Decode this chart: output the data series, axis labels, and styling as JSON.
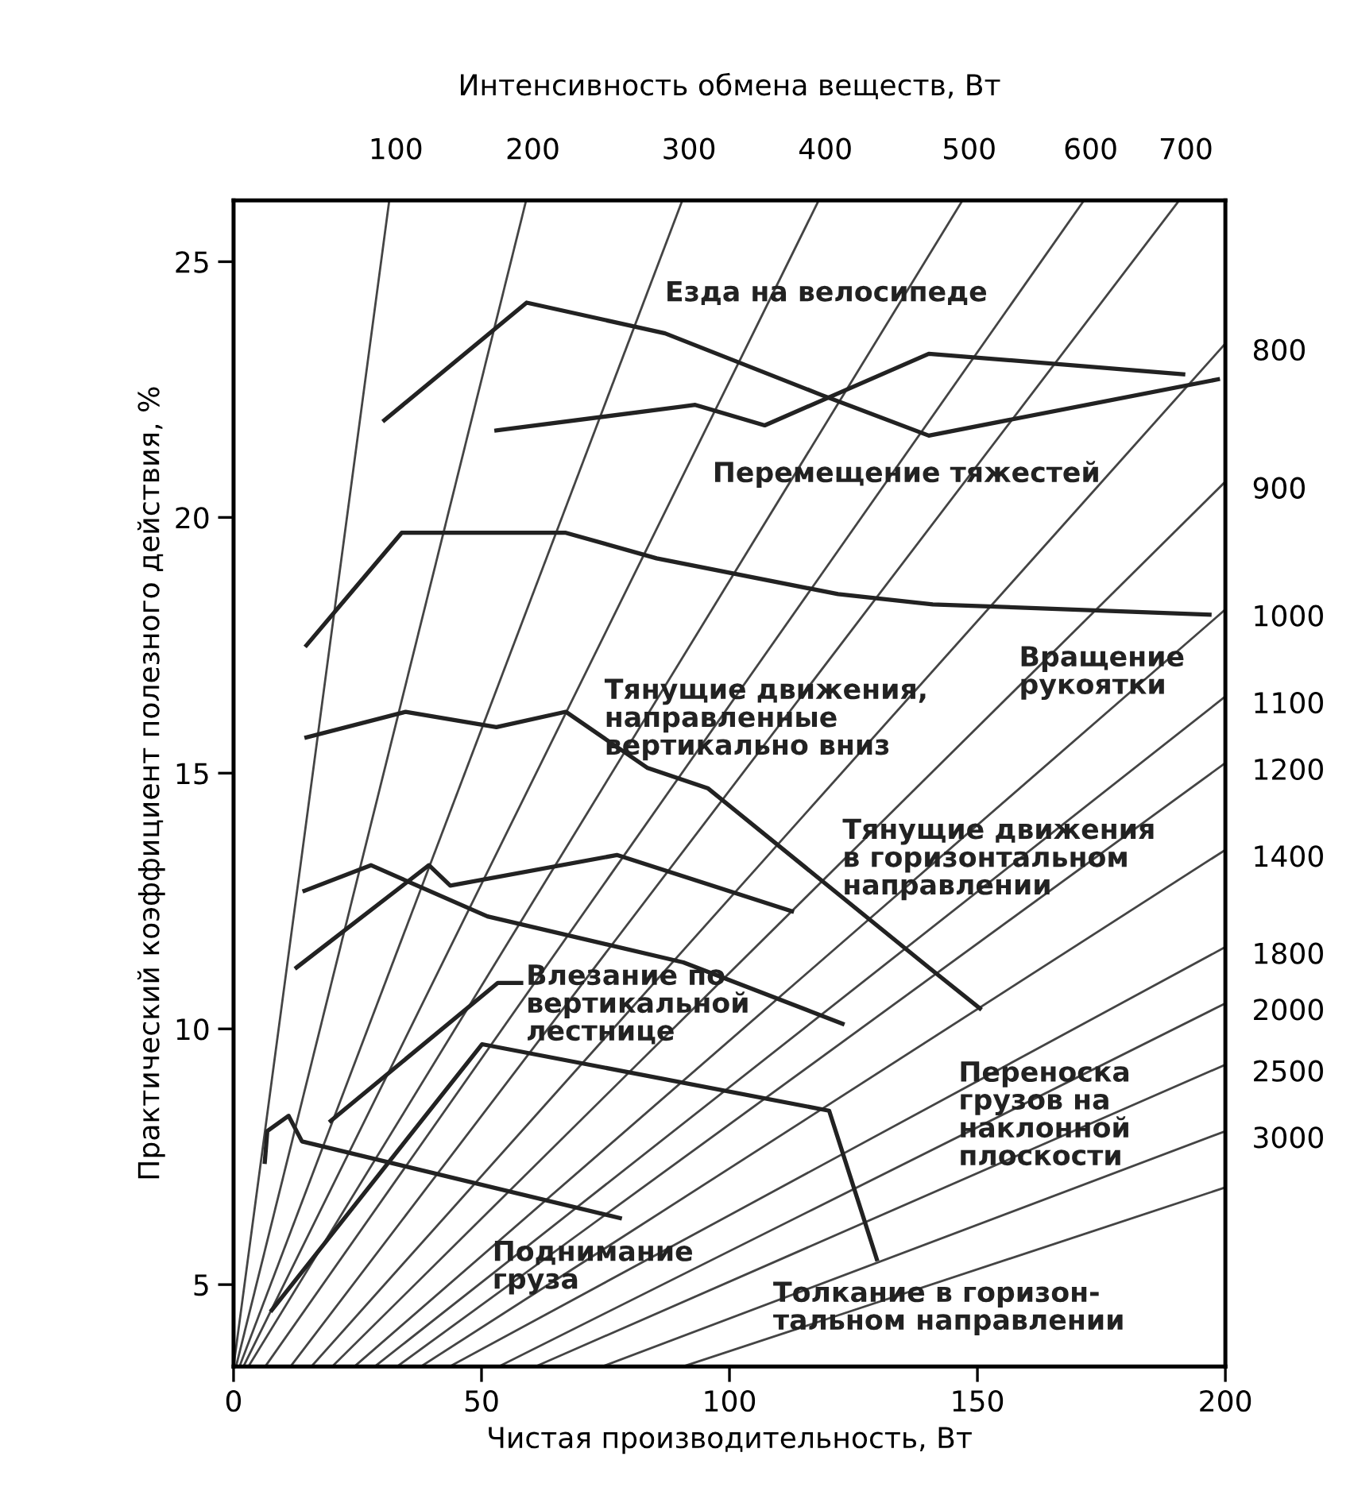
{
  "chart_data": {
    "type": "line",
    "xlabel": "Чистая производительность, Вт",
    "ylabel": "Практический коэффициент полезного действия, %",
    "x2label": "Интенсивность обмена веществ, Вт",
    "xlim": [
      0,
      200
    ],
    "xticks": [
      0,
      50,
      100,
      150,
      200
    ],
    "ylim": [
      3.4,
      26.2
    ],
    "yticks": [
      5,
      10,
      15,
      20,
      25
    ],
    "grid": false,
    "series": [
      {
        "name": "100",
        "color": "#444444",
        "x": [
          0,
          31.4
        ],
        "values": [
          3.4,
          26.2
        ]
      },
      {
        "name": "200",
        "color": "#444444",
        "x": [
          0.5,
          59
        ],
        "values": [
          3.4,
          26.2
        ]
      },
      {
        "name": "300",
        "color": "#444444",
        "x": [
          1.2,
          90.5
        ],
        "values": [
          3.4,
          26.2
        ]
      },
      {
        "name": "400",
        "color": "#444444",
        "x": [
          2,
          118
        ],
        "values": [
          3.4,
          26.2
        ]
      },
      {
        "name": "500",
        "color": "#444444",
        "x": [
          3,
          147
        ],
        "values": [
          3.4,
          26.2
        ]
      },
      {
        "name": "600",
        "color": "#444444",
        "x": [
          6.4,
          171.5
        ],
        "values": [
          3.4,
          26.2
        ]
      },
      {
        "name": "700",
        "color": "#444444",
        "x": [
          11.5,
          190.7
        ],
        "values": [
          3.4,
          26.2
        ]
      },
      {
        "name": "800",
        "color": "#444444",
        "x": [
          15.7,
          200
        ],
        "values": [
          3.4,
          23.4
        ]
      },
      {
        "name": "900",
        "color": "#444444",
        "x": [
          19.9,
          200
        ],
        "values": [
          3.4,
          20.7
        ]
      },
      {
        "name": "1000",
        "color": "#444444",
        "x": [
          24.4,
          200
        ],
        "values": [
          3.4,
          18.2
        ]
      },
      {
        "name": "1100",
        "color": "#444444",
        "x": [
          28.5,
          200
        ],
        "values": [
          3.4,
          16.5
        ]
      },
      {
        "name": "1200",
        "color": "#444444",
        "x": [
          33,
          200
        ],
        "values": [
          3.4,
          15.2
        ]
      },
      {
        "name": "1400",
        "color": "#444444",
        "x": [
          37.8,
          200
        ],
        "values": [
          3.4,
          13.5
        ]
      },
      {
        "name": "1800",
        "color": "#444444",
        "x": [
          43.6,
          200
        ],
        "values": [
          3.4,
          11.6
        ]
      },
      {
        "name": "2000",
        "color": "#444444",
        "x": [
          53.5,
          200
        ],
        "values": [
          3.4,
          10.5
        ]
      },
      {
        "name": "2500",
        "color": "#444444",
        "x": [
          60.9,
          200
        ],
        "values": [
          3.4,
          9.3
        ]
      },
      {
        "name": "3000",
        "color": "#444444",
        "x": [
          74.4,
          200
        ],
        "values": [
          3.4,
          8.0
        ]
      },
      {
        "color": "#444444",
        "x": [
          90.7,
          200
        ],
        "values": [
          3.4,
          6.9
        ]
      },
      {
        "color": "#222222",
        "x": [
          30.4,
          59.1,
          87.0,
          118.4,
          140.2,
          198.5
        ],
        "values": [
          21.9,
          24.2,
          23.6,
          22.4,
          21.6,
          22.7
        ]
      },
      {
        "color": "#222222",
        "x": [
          53.0,
          93.1,
          107.1,
          140.2,
          191.5
        ],
        "values": [
          21.7,
          22.2,
          21.8,
          23.2,
          22.8
        ]
      },
      {
        "color": "#222222",
        "x": [
          14.7,
          33.9,
          67.0,
          85.3,
          121.9,
          141,
          196.8
        ],
        "values": [
          17.5,
          19.7,
          19.7,
          19.2,
          18.5,
          18.3,
          18.1
        ]
      },
      {
        "color": "#222222",
        "x": [
          14.7,
          34.7,
          53.0,
          67.0,
          83.5,
          95.7,
          140.2,
          150.5
        ],
        "values": [
          15.7,
          16.2,
          15.9,
          16.2,
          15.1,
          14.7,
          11.2,
          10.4
        ]
      },
      {
        "color": "#222222",
        "x": [
          14.3,
          27.7,
          51.2,
          90.7,
          122.8
        ],
        "values": [
          12.7,
          13.2,
          12.2,
          11.3,
          10.1
        ]
      },
      {
        "color": "#222222",
        "x": [
          12.7,
          39.4,
          43.7,
          77.3,
          112.6
        ],
        "values": [
          11.2,
          13.2,
          12.8,
          13.4,
          12.3
        ]
      },
      {
        "color": "#222222",
        "x": [
          19.6,
          53.3,
          58
        ],
        "values": [
          8.2,
          10.9,
          10.9
        ]
      },
      {
        "color": "#222222",
        "x": [
          7.7,
          50.1,
          120.1,
          129.7
        ],
        "values": [
          4.5,
          9.7,
          8.4,
          5.5
        ]
      },
      {
        "color": "#222222",
        "x": [
          6.3,
          6.8,
          11.1,
          13.8,
          77.9
        ],
        "values": [
          7.4,
          8.0,
          8.3,
          7.8,
          6.3
        ]
      }
    ],
    "annotations": [
      "Езда на велосипеде",
      "Перемещение тяжестей",
      "Тянущие движения,\nнаправленные\nвертикально вниз",
      "Вращение\nрукоятки",
      "Тянущие движения\nв горизонтальном\nнаправлении",
      "Влезание по\nвертикальной\nлестнице",
      "Переноска\nгрузов на\nнаклонной\nплоскости",
      "Поднимание\nгруза",
      "Толкание в горизон-\nтальном направлении"
    ]
  }
}
